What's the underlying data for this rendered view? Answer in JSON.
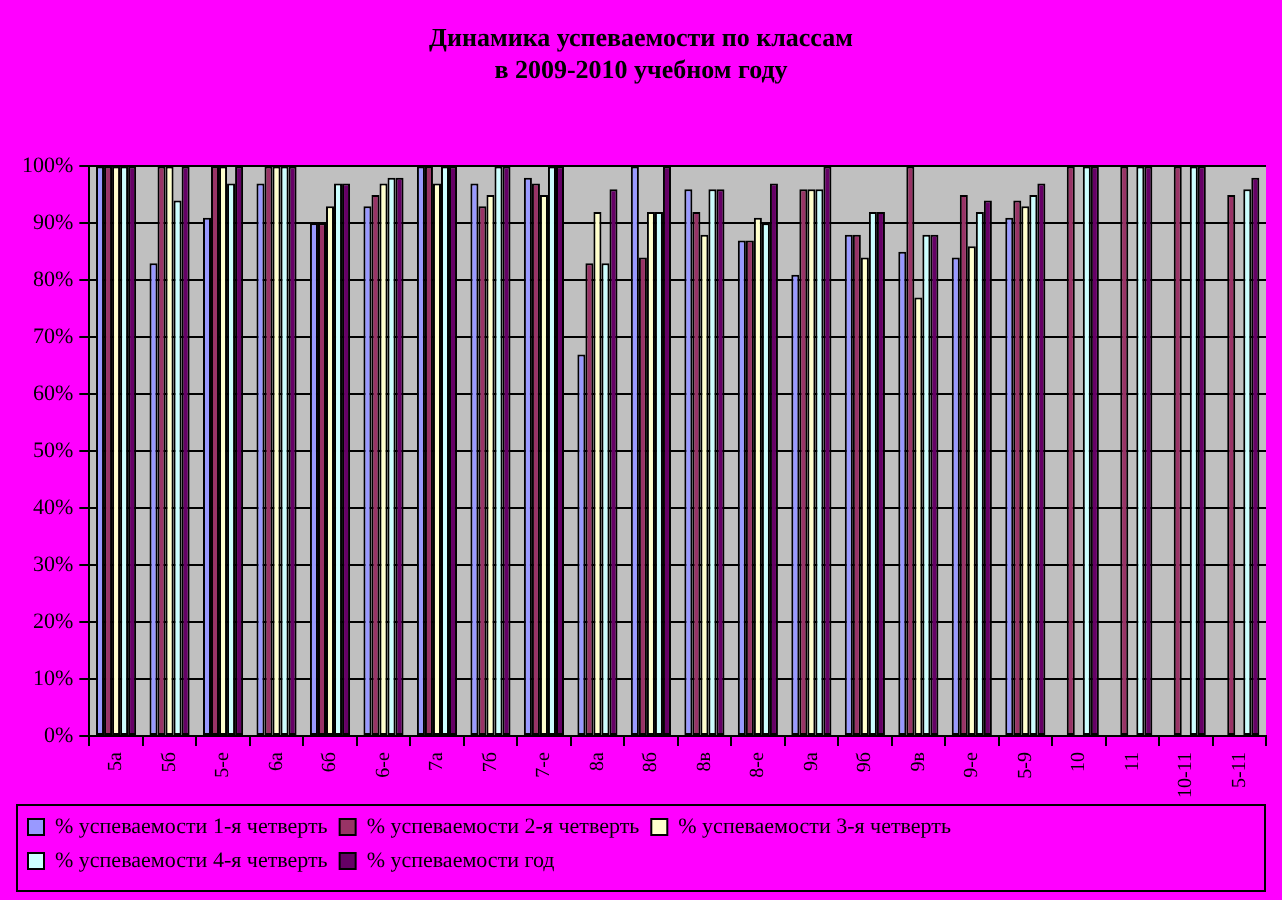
{
  "chart_data": {
    "type": "bar",
    "title": "Динамика успеваемости по классам\nв 2009-2010 учебном году",
    "categories": [
      "5а",
      "5б",
      "5-е",
      "6а",
      "6б",
      "6-е",
      "7а",
      "7б",
      "7-е",
      "8а",
      "8б",
      "8в",
      "8-е",
      "9а",
      "9б",
      "9в",
      "9-е",
      "5-9",
      "10",
      "11",
      "10-11",
      "5-11"
    ],
    "series": [
      {
        "name": "% успеваемости 1-я четверть",
        "color": "#9999ff",
        "values": [
          100,
          83,
          91,
          97,
          90,
          93,
          100,
          97,
          98,
          67,
          100,
          96,
          87,
          81,
          88,
          85,
          84,
          91,
          null,
          null,
          null,
          null
        ]
      },
      {
        "name": "% успеваемости 2-я четверть",
        "color": "#993366",
        "values": [
          100,
          100,
          100,
          100,
          90,
          95,
          100,
          93,
          97,
          83,
          84,
          92,
          87,
          96,
          88,
          100,
          95,
          94,
          100,
          100,
          100,
          95
        ]
      },
      {
        "name": "% успеваемости 3-я четверть",
        "color": "#ffffcc",
        "values": [
          100,
          100,
          100,
          100,
          93,
          97,
          97,
          95,
          95,
          92,
          92,
          88,
          91,
          96,
          84,
          77,
          86,
          93,
          null,
          null,
          null,
          null
        ]
      },
      {
        "name": "% успеваемости 4-я четверть",
        "color": "#ccffff",
        "values": [
          100,
          94,
          97,
          100,
          97,
          98,
          100,
          100,
          100,
          83,
          92,
          96,
          90,
          96,
          92,
          88,
          92,
          95,
          100,
          100,
          100,
          96
        ]
      },
      {
        "name": "% успеваемости год",
        "color": "#660066",
        "values": [
          100,
          100,
          100,
          100,
          97,
          98,
          100,
          100,
          100,
          96,
          100,
          96,
          97,
          100,
          92,
          88,
          94,
          97,
          100,
          100,
          100,
          98
        ]
      }
    ],
    "ylim": [
      0,
      100
    ],
    "yticks": [
      {
        "value": 0,
        "label": "0%"
      },
      {
        "value": 10,
        "label": "10%"
      },
      {
        "value": 20,
        "label": "20%"
      },
      {
        "value": 30,
        "label": "30%"
      },
      {
        "value": 40,
        "label": "40%"
      },
      {
        "value": 50,
        "label": "50%"
      },
      {
        "value": 60,
        "label": "60%"
      },
      {
        "value": 70,
        "label": "70%"
      },
      {
        "value": 80,
        "label": "80%"
      },
      {
        "value": 90,
        "label": "90%"
      },
      {
        "value": 100,
        "label": "100%"
      }
    ],
    "grid": "y",
    "legend": "bottom left"
  }
}
